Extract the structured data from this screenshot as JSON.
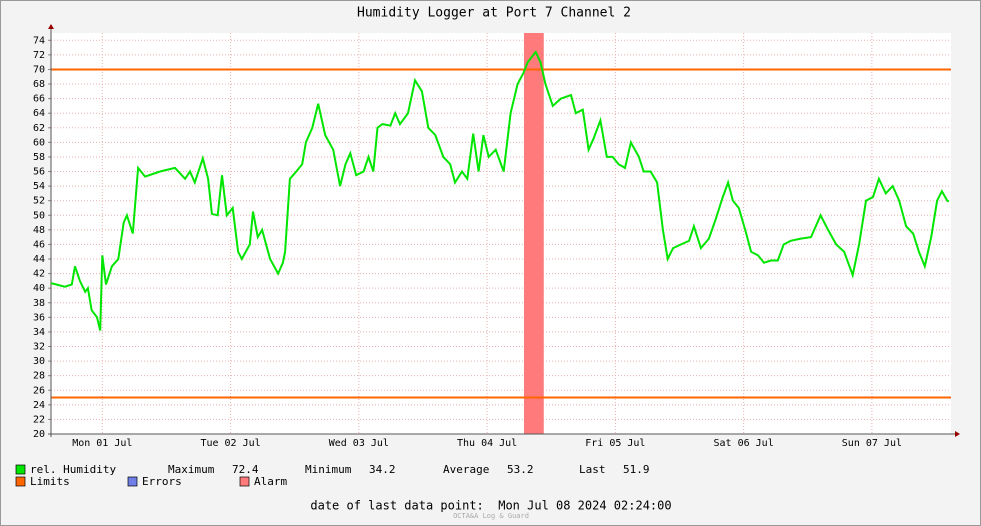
{
  "chart_data": {
    "type": "line",
    "title": "Humidity Logger at Port 7 Channel 2",
    "xlim": [
      2.4,
      170.8
    ],
    "ylim": [
      20,
      75
    ],
    "yticks": [
      20,
      22,
      24,
      26,
      28,
      30,
      32,
      34,
      36,
      38,
      40,
      42,
      44,
      46,
      48,
      50,
      52,
      54,
      56,
      58,
      60,
      62,
      64,
      66,
      68,
      70,
      72,
      74
    ],
    "xticks": [
      {
        "value": 12,
        "label": "Mon 01 Jul"
      },
      {
        "value": 36,
        "label": "Tue 02 Jul"
      },
      {
        "value": 60,
        "label": "Wed 03 Jul"
      },
      {
        "value": 84,
        "label": "Thu 04 Jul"
      },
      {
        "value": 108,
        "label": "Fri 05 Jul"
      },
      {
        "value": 132,
        "label": "Sat 06 Jul"
      },
      {
        "value": 156,
        "label": "Sun 07 Jul"
      }
    ],
    "grid": true,
    "series": [
      {
        "name": "rel. Humidity",
        "color": "#00e600",
        "x": [
          2.4,
          5,
          6.3,
          6.9,
          7.8,
          8.8,
          9.3,
          10,
          11,
          11.6,
          12,
          12.7,
          13.8,
          15,
          16,
          16.6,
          17.7,
          18.7,
          20,
          22.8,
          25.6,
          27.5,
          28.4,
          29.3,
          30.8,
          31.8,
          32.5,
          33.6,
          34.4,
          35.3,
          36.4,
          37.4,
          38.1,
          39.6,
          40.2,
          41.1,
          41.9,
          43.4,
          44.9,
          45.8,
          46.2,
          47.1,
          48.3,
          49.4,
          50.1,
          51.3,
          52.4,
          53.7,
          55.2,
          56.5,
          57.5,
          58.4,
          59.5,
          60.9,
          61.8,
          62.7,
          63.5,
          64.4,
          65.9,
          66.8,
          67.7,
          69.2,
          70.5,
          71.8,
          73,
          74.3,
          75.8,
          77.1,
          78,
          79.3,
          80.3,
          81.4,
          82.4,
          83.3,
          84.3,
          85.6,
          87.1,
          88.4,
          89.7,
          90.8,
          91.6,
          93.1,
          94,
          94.9,
          96.3,
          97.8,
          99.7,
          100.6,
          101.9,
          103,
          103.9,
          105.2,
          106.4,
          107.5,
          108.6,
          109.8,
          110.9,
          112.4,
          113.3,
          114.6,
          115.8,
          116.9,
          117.8,
          118.8,
          120.3,
          121.8,
          122.7,
          124,
          125.5,
          126.8,
          128.1,
          129.1,
          130,
          131.1,
          132.3,
          133.4,
          134.7,
          135.8,
          137.1,
          138.4,
          139.5,
          140.8,
          142.7,
          144.6,
          146.4,
          147.8,
          149.3,
          150.8,
          152.4,
          153.6,
          154.9,
          156.2,
          157.3,
          158.6,
          159.9,
          161.1,
          162.4,
          163.7,
          164.8,
          165.9,
          167.1,
          168.2,
          169.1,
          170.1,
          170.4
        ],
        "values": [
          40.7,
          40.2,
          40.5,
          43,
          41,
          39.5,
          40,
          37,
          36,
          34.2,
          44.5,
          40.5,
          43,
          44,
          49,
          50,
          47.5,
          56.5,
          55.3,
          56,
          56.5,
          55,
          56,
          54.5,
          57.8,
          55,
          50.2,
          50,
          55.5,
          50,
          51,
          45,
          44,
          46,
          50.5,
          47,
          48,
          44,
          42,
          43.5,
          45,
          55,
          56,
          57,
          60,
          62,
          65.3,
          61,
          59,
          54,
          57,
          58.5,
          55.5,
          56,
          58,
          56,
          62,
          62.5,
          62.3,
          64,
          62.5,
          64,
          68.5,
          67,
          62,
          61,
          58,
          57,
          54.5,
          56,
          55,
          61.2,
          56,
          61,
          58,
          59,
          56,
          64,
          68,
          69.5,
          71,
          72.4,
          71,
          68,
          65,
          66,
          66.5,
          64,
          64.5,
          59,
          60.5,
          63,
          58,
          58,
          57,
          56.5,
          60,
          58,
          56,
          56,
          54.5,
          48,
          44,
          45.5,
          46,
          46.5,
          48.5,
          45.5,
          46.8,
          49.5,
          52.5,
          54.5,
          52,
          51,
          48,
          45,
          44.5,
          43.5,
          43.8,
          43.8,
          46,
          46.5,
          46.8,
          47,
          50,
          48,
          46,
          45,
          41.8,
          46,
          52,
          52.5,
          55,
          53,
          54,
          52,
          48.5,
          47.5,
          45,
          43,
          47,
          52,
          53.3,
          52,
          51.9
        ]
      }
    ],
    "limits": [
      70,
      25
    ],
    "limits_color": "#ff6600",
    "alarm_periods": [
      [
        90.9,
        94.6
      ]
    ],
    "alarm_color": "#ff7a7a",
    "legend": [
      {
        "label": "rel. Humidity",
        "color": "#00e600"
      },
      {
        "label": "Limits",
        "color": "#ff6600"
      },
      {
        "label": "Errors",
        "color": "#6f7fe6"
      },
      {
        "label": "Alarm",
        "color": "#ff7a7a"
      }
    ],
    "stats": [
      {
        "label": "Maximum",
        "value": 72.4
      },
      {
        "label": "Minimum",
        "value": 34.2
      },
      {
        "label": "Average",
        "value": 53.2
      },
      {
        "label": "Last",
        "value": 51.9
      }
    ],
    "footer": "date of last data point:  Mon Jul 08 2024 02:24:00",
    "watermark": "OCTA&A Log & Guard"
  }
}
